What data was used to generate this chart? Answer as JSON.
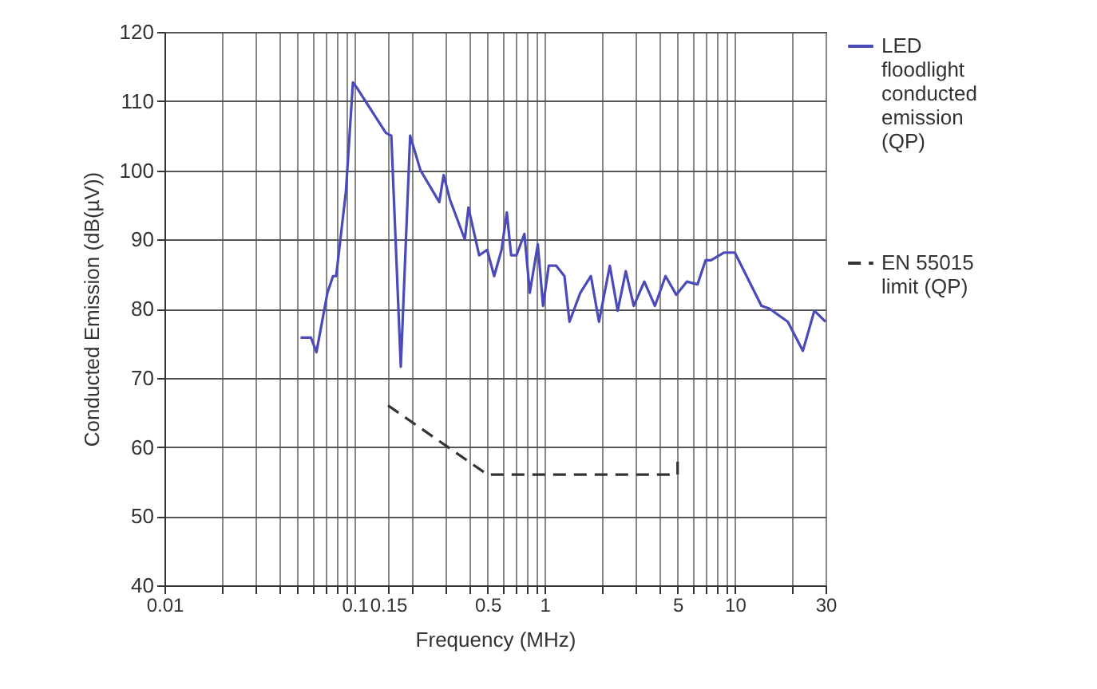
{
  "chart_data": {
    "type": "line",
    "xlabel": "Frequency (MHz)",
    "ylabel": "Conducted Emission (dB(µV))",
    "log": "x",
    "grid": true,
    "legend": "right",
    "marker": "none",
    "xlim": [
      0.01,
      30
    ],
    "ylim": [
      40,
      120
    ],
    "xticks": [
      0.01,
      {
        "value": 0.02,
        "label": null
      },
      {
        "value": 0.03,
        "label": null
      },
      {
        "value": 0.04,
        "label": null
      },
      {
        "value": 0.05,
        "label": null
      },
      {
        "value": 0.06,
        "label": null
      },
      {
        "value": 0.07,
        "label": null
      },
      {
        "value": 0.08,
        "label": null
      },
      {
        "value": 0.09,
        "label": null
      },
      0.1,
      0.15,
      {
        "value": 0.2,
        "label": null
      },
      {
        "value": 0.3,
        "label": null
      },
      {
        "value": 0.4,
        "label": null
      },
      0.5,
      {
        "value": 0.6,
        "label": null
      },
      {
        "value": 0.7,
        "label": null
      },
      {
        "value": 0.8,
        "label": null
      },
      {
        "value": 0.9,
        "label": null
      },
      1,
      {
        "value": 2,
        "label": null
      },
      {
        "value": 3,
        "label": null
      },
      {
        "value": 4,
        "label": null
      },
      5,
      {
        "value": 6,
        "label": null
      },
      {
        "value": 7,
        "label": null
      },
      {
        "value": 8,
        "label": null
      },
      {
        "value": 9,
        "label": null
      },
      10,
      {
        "value": 20,
        "label": null
      },
      30
    ],
    "yticks": [
      40,
      50,
      60,
      70,
      80,
      90,
      100,
      110,
      120
    ],
    "series": [
      {
        "name": "LED floodlight conducted emission (QP)",
        "color": "#4a4ab8",
        "line_style": "solid",
        "x": [
          0.052,
          0.059,
          0.063,
          0.072,
          0.077,
          0.08,
          0.09,
          0.098,
          0.103,
          0.146,
          0.156,
          0.175,
          0.196,
          0.222,
          0.279,
          0.294,
          0.317,
          0.38,
          0.397,
          0.452,
          0.498,
          0.542,
          0.593,
          0.632,
          0.666,
          0.71,
          0.782,
          0.835,
          0.92,
          0.98,
          1.05,
          1.15,
          1.27,
          1.35,
          1.54,
          1.75,
          1.93,
          2.2,
          2.42,
          2.67,
          2.94,
          3.34,
          3.8,
          4.32,
          4.92,
          5.59,
          6.36,
          7.02,
          7.49,
          8.79,
          10.0,
          13.8,
          15.2,
          19.0,
          22.8,
          26.2,
          30
        ],
        "values": [
          75.8,
          75.8,
          73.7,
          82.3,
          84.7,
          84.7,
          96.9,
          112.7,
          111.9,
          105.4,
          105,
          71.6,
          105,
          100,
          95.4,
          99.3,
          95.8,
          90,
          94.6,
          87.7,
          88.5,
          84.7,
          88.5,
          93.9,
          87.7,
          87.7,
          90.8,
          82.3,
          89.3,
          80.4,
          86.2,
          86.2,
          84.7,
          78.1,
          82.3,
          84.7,
          78.1,
          86.2,
          79.7,
          85.4,
          80.4,
          83.9,
          80.4,
          84.7,
          82,
          83.9,
          83.5,
          87,
          87,
          88.1,
          88.1,
          80.4,
          80,
          78.1,
          73.9,
          79.7,
          78.1
        ]
      },
      {
        "name": "EN 55015 limit (QP)",
        "color": "#333333",
        "line_style": "dashed",
        "x": [
          0.15,
          0.5,
          5,
          5
        ],
        "values": [
          66,
          56,
          56,
          58
        ]
      }
    ]
  }
}
